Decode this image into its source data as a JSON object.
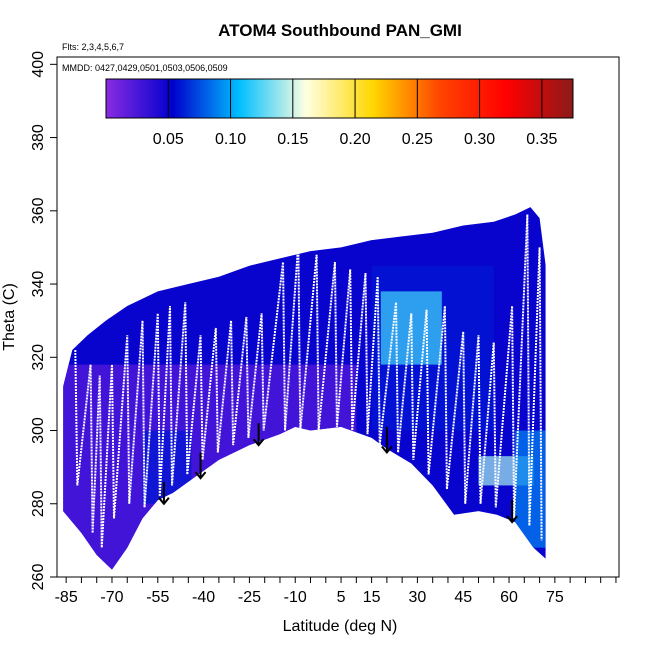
{
  "chart_data": {
    "type": "heatmap",
    "title": "ATOM4 Southbound PAN_GMI",
    "subtitle_flights": "Flts: 2,3,4,5,6,7",
    "subtitle_dates": "MMDD: 0427,0429,0501,0503,0506,0509",
    "xlabel": "Latitude (deg N)",
    "ylabel": "Theta (C)",
    "xlim": [
      -88,
      96
    ],
    "ylim": [
      260,
      402
    ],
    "x_ticks": [
      -85,
      -70,
      -55,
      -40,
      -25,
      -10,
      5,
      15,
      30,
      45,
      60,
      75
    ],
    "y_ticks": [
      260,
      280,
      300,
      320,
      340,
      360,
      380,
      400
    ],
    "colorbar": {
      "range": [
        0,
        0.375
      ],
      "ticks": [
        0.05,
        0.1,
        0.15,
        0.2,
        0.25,
        0.3,
        0.35
      ],
      "tick_labels": [
        "0.05",
        "0.10",
        "0.15",
        "0.20",
        "0.25",
        "0.30",
        "0.35"
      ],
      "colors": [
        "#8a2be2",
        "#0000cd",
        "#00bfff",
        "#ffffe0",
        "#ffd700",
        "#ff4500",
        "#ff0000",
        "#8b1a1a"
      ]
    },
    "field_top_boundary": [
      [
        -86,
        312
      ],
      [
        -83,
        322
      ],
      [
        -78,
        326
      ],
      [
        -72,
        330
      ],
      [
        -65,
        334
      ],
      [
        -55,
        338
      ],
      [
        -45,
        340
      ],
      [
        -35,
        342
      ],
      [
        -25,
        345
      ],
      [
        -15,
        347
      ],
      [
        -5,
        349
      ],
      [
        5,
        350
      ],
      [
        15,
        352
      ],
      [
        25,
        353
      ],
      [
        35,
        354
      ],
      [
        45,
        356
      ],
      [
        55,
        357
      ],
      [
        62,
        359
      ],
      [
        67,
        361
      ],
      [
        70,
        358
      ],
      [
        72,
        345
      ]
    ],
    "field_bottom_boundary": [
      [
        -86,
        278
      ],
      [
        -80,
        272
      ],
      [
        -75,
        266
      ],
      [
        -70,
        262
      ],
      [
        -65,
        268
      ],
      [
        -60,
        276
      ],
      [
        -55,
        281
      ],
      [
        -50,
        283
      ],
      [
        -45,
        286
      ],
      [
        -35,
        292
      ],
      [
        -25,
        296
      ],
      [
        -15,
        299
      ],
      [
        -10,
        301
      ],
      [
        -5,
        300
      ],
      [
        5,
        301
      ],
      [
        15,
        298
      ],
      [
        20,
        295
      ],
      [
        28,
        291
      ],
      [
        35,
        285
      ],
      [
        42,
        277
      ],
      [
        50,
        278
      ],
      [
        56,
        277
      ],
      [
        62,
        275
      ],
      [
        68,
        268
      ],
      [
        72,
        265
      ]
    ],
    "series": [
      {
        "profiles": [
          {
            "x": -82,
            "bottom": 285,
            "top": 322
          },
          {
            "x": -77,
            "bottom": 272,
            "top": 318
          },
          {
            "x": -74,
            "bottom": 268,
            "top": 315
          },
          {
            "x": -70,
            "bottom": 276,
            "top": 318
          },
          {
            "x": -65,
            "bottom": 280,
            "top": 326
          },
          {
            "x": -60,
            "bottom": 279,
            "top": 330
          },
          {
            "x": -55,
            "bottom": 282,
            "top": 332
          },
          {
            "x": -51,
            "bottom": 285,
            "top": 334
          },
          {
            "x": -46,
            "bottom": 288,
            "top": 335
          },
          {
            "x": -41,
            "bottom": 292,
            "top": 326
          },
          {
            "x": -36,
            "bottom": 294,
            "top": 328
          },
          {
            "x": -31,
            "bottom": 296,
            "top": 330
          },
          {
            "x": -26,
            "bottom": 298,
            "top": 331
          },
          {
            "x": -21,
            "bottom": 300,
            "top": 332
          },
          {
            "x": -14,
            "bottom": 300,
            "top": 346
          },
          {
            "x": -9,
            "bottom": 300,
            "top": 351
          },
          {
            "x": -3,
            "bottom": 300,
            "top": 348
          },
          {
            "x": 3,
            "bottom": 301,
            "top": 346
          },
          {
            "x": 8,
            "bottom": 300,
            "top": 344
          },
          {
            "x": 13,
            "bottom": 299,
            "top": 343
          },
          {
            "x": 17,
            "bottom": 296,
            "top": 342
          },
          {
            "x": 23,
            "bottom": 294,
            "top": 335
          },
          {
            "x": 28,
            "bottom": 292,
            "top": 332
          },
          {
            "x": 33,
            "bottom": 288,
            "top": 333
          },
          {
            "x": 39,
            "bottom": 284,
            "top": 334
          },
          {
            "x": 45,
            "bottom": 280,
            "top": 327
          },
          {
            "x": 50,
            "bottom": 280,
            "top": 326
          },
          {
            "x": 55,
            "bottom": 279,
            "top": 324
          },
          {
            "x": 61,
            "bottom": 276,
            "top": 334
          },
          {
            "x": 66,
            "bottom": 274,
            "top": 359
          },
          {
            "x": 70,
            "bottom": 270,
            "top": 350
          }
        ]
      }
    ],
    "arrows": [
      {
        "x": -53,
        "from": 286,
        "to": 280
      },
      {
        "x": -41,
        "from": 294,
        "to": 287
      },
      {
        "x": -22,
        "from": 302,
        "to": 296
      },
      {
        "x": 20,
        "from": 301,
        "to": 294
      },
      {
        "x": 61,
        "from": 281,
        "to": 275
      }
    ],
    "concentration_patches": [
      {
        "x0": -86,
        "x1": 72,
        "y0": 255,
        "y1": 365,
        "value": 0.05
      },
      {
        "x0": -86,
        "x1": 10,
        "y0": 262,
        "y1": 318,
        "value": 0.02
      },
      {
        "x0": 15,
        "x1": 55,
        "y0": 300,
        "y1": 345,
        "value": 0.06
      },
      {
        "x0": 18,
        "x1": 38,
        "y0": 318,
        "y1": 338,
        "value": 0.12
      },
      {
        "x0": 50,
        "x1": 68,
        "y0": 285,
        "y1": 293,
        "value": 0.14
      },
      {
        "x0": 62,
        "x1": 72,
        "y0": 268,
        "y1": 300,
        "value": 0.09
      },
      {
        "x0": -60,
        "x1": -44,
        "y0": 280,
        "y1": 300,
        "value": 0.06
      }
    ]
  }
}
